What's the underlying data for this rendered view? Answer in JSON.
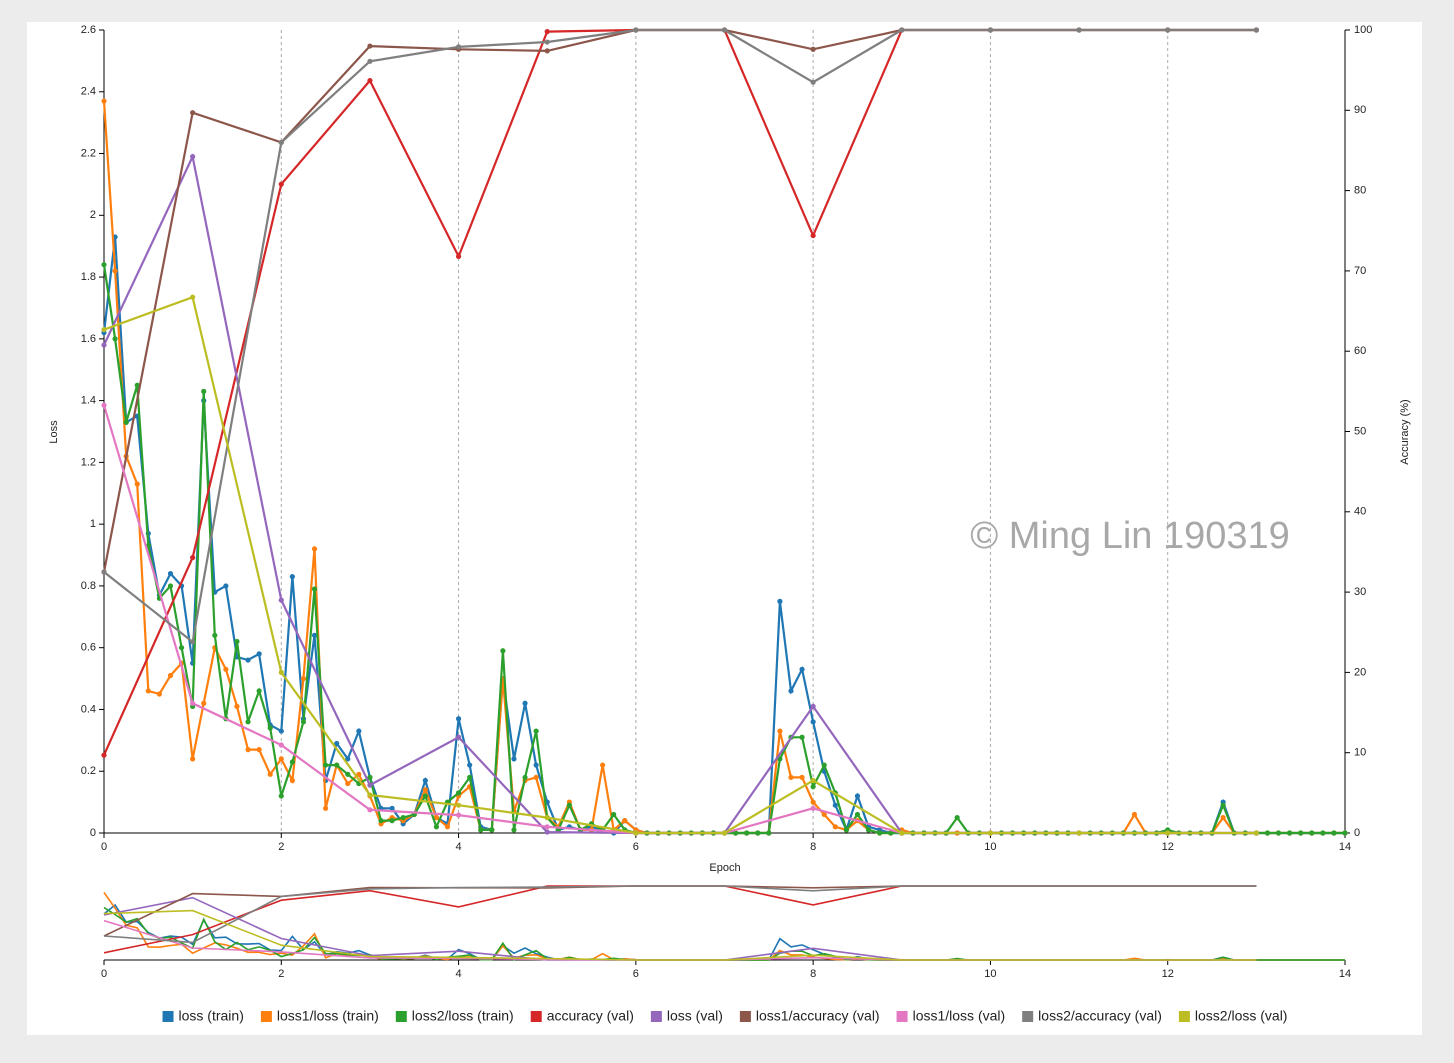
{
  "chart_data": {
    "type": "line",
    "watermark": "© Ming Lin 190319",
    "xlabel": "Epoch",
    "ylabel": "Loss",
    "y2label": "Accuracy (%)",
    "xlim": [
      0,
      14
    ],
    "xticks": [
      0,
      2,
      4,
      6,
      8,
      10,
      12,
      14
    ],
    "ylim": [
      0,
      2.6
    ],
    "yticks": [
      0,
      0.2,
      0.4,
      0.6,
      0.8,
      1,
      1.2,
      1.4,
      1.6,
      1.8,
      2,
      2.2,
      2.4,
      2.6
    ],
    "y2lim": [
      0,
      100
    ],
    "y2ticks": [
      0,
      10,
      20,
      30,
      40,
      50,
      60,
      70,
      80,
      90,
      100
    ],
    "xgrid": true,
    "x": [
      0,
      0.125,
      0.25,
      0.375,
      0.5,
      0.625,
      0.75,
      0.875,
      1,
      1.125,
      1.25,
      1.375,
      1.5,
      1.625,
      1.75,
      1.875,
      2,
      2.125,
      2.25,
      2.375,
      2.5,
      2.625,
      2.75,
      2.875,
      3,
      3.125,
      3.25,
      3.375,
      3.5,
      3.625,
      3.75,
      3.875,
      4,
      4.125,
      4.25,
      4.375,
      4.5,
      4.625,
      4.75,
      4.875,
      5,
      5.125,
      5.25,
      5.375,
      5.5,
      5.625,
      5.75,
      5.875,
      6,
      6.125,
      6.25,
      6.375,
      6.5,
      6.625,
      6.75,
      6.875,
      7,
      7.125,
      7.25,
      7.375,
      7.5,
      7.625,
      7.75,
      7.875,
      8,
      8.125,
      8.25,
      8.375,
      8.5,
      8.625,
      8.75,
      8.875,
      9,
      9.125,
      9.25,
      9.375,
      9.5,
      9.625,
      9.75,
      9.875,
      10,
      10.125,
      10.25,
      10.375,
      10.5,
      10.625,
      10.75,
      10.875,
      11,
      11.125,
      11.25,
      11.375,
      11.5,
      11.625,
      11.75,
      11.875,
      12,
      12.125,
      12.25,
      12.375,
      12.5,
      12.625,
      12.75,
      12.875,
      13,
      13.125,
      13.25,
      13.375,
      13.5,
      13.625,
      13.75,
      13.875,
      14
    ],
    "series": [
      {
        "name": "loss (train)",
        "color": "#1f77b4",
        "values": [
          1.62,
          1.93,
          1.33,
          1.35,
          0.97,
          0.77,
          0.84,
          0.8,
          0.55,
          1.4,
          0.78,
          0.8,
          0.57,
          0.56,
          0.58,
          0.35,
          0.33,
          0.83,
          0.37,
          0.64,
          0.17,
          0.29,
          0.24,
          0.33,
          0.18,
          0.08,
          0.08,
          0.03,
          0.06,
          0.17,
          0.05,
          0.03,
          0.37,
          0.22,
          0.02,
          0.01,
          0.5,
          0.24,
          0.42,
          0.22,
          0.1,
          0.01,
          0.02,
          0.01,
          0.02,
          0.01,
          0,
          0.04,
          0.01,
          0,
          0,
          0,
          0,
          0,
          0,
          0,
          0,
          0,
          0,
          0,
          0,
          0.75,
          0.46,
          0.53,
          0.36,
          0.2,
          0.09,
          0.01,
          0.12,
          0.02,
          0.01,
          0,
          0,
          0,
          0,
          0,
          0,
          0,
          0,
          0,
          0,
          0,
          0,
          0,
          0,
          0,
          0,
          0,
          0,
          0,
          0,
          0,
          0,
          0,
          0,
          0,
          0,
          0,
          0,
          0,
          0,
          0.1,
          0,
          0,
          0,
          0,
          0,
          0,
          0,
          0,
          0,
          0,
          0
        ]
      },
      {
        "name": "loss1/loss (train)",
        "color": "#ff7f0e",
        "values": [
          2.37,
          1.82,
          1.22,
          1.13,
          0.46,
          0.45,
          0.51,
          0.55,
          0.24,
          0.42,
          0.6,
          0.53,
          0.41,
          0.27,
          0.27,
          0.19,
          0.24,
          0.17,
          0.5,
          0.92,
          0.08,
          0.22,
          0.16,
          0.19,
          0.12,
          0.03,
          0.05,
          0.04,
          0.06,
          0.14,
          0.05,
          0.02,
          0.12,
          0.15,
          0.01,
          0.01,
          0.5,
          0.07,
          0.17,
          0.18,
          0.05,
          0.02,
          0.1,
          0.01,
          0.01,
          0.22,
          0.01,
          0.04,
          0.01,
          0,
          0,
          0,
          0,
          0,
          0,
          0,
          0,
          0,
          0,
          0,
          0,
          0.33,
          0.18,
          0.18,
          0.1,
          0.06,
          0.02,
          0.01,
          0.04,
          0.01,
          0,
          0,
          0.01,
          0,
          0,
          0,
          0,
          0,
          0,
          0,
          0,
          0,
          0,
          0,
          0,
          0,
          0,
          0,
          0,
          0,
          0,
          0,
          0,
          0.06,
          0,
          0,
          0,
          0,
          0,
          0,
          0,
          0.05,
          0,
          0,
          0,
          0,
          0,
          0,
          0,
          0,
          0,
          0,
          0
        ]
      },
      {
        "name": "loss2/loss (train)",
        "color": "#2ca02c",
        "values": [
          1.84,
          1.6,
          1.33,
          1.45,
          0.93,
          0.76,
          0.8,
          0.6,
          0.41,
          1.43,
          0.64,
          0.37,
          0.62,
          0.36,
          0.46,
          0.34,
          0.12,
          0.23,
          0.36,
          0.79,
          0.22,
          0.22,
          0.19,
          0.16,
          0.18,
          0.04,
          0.04,
          0.05,
          0.06,
          0.12,
          0.02,
          0.1,
          0.13,
          0.18,
          0.01,
          0.01,
          0.59,
          0.01,
          0.18,
          0.33,
          0.05,
          0.01,
          0.09,
          0.01,
          0.03,
          0.01,
          0.06,
          0.01,
          0,
          0,
          0,
          0,
          0,
          0,
          0,
          0,
          0,
          0,
          0,
          0,
          0,
          0.24,
          0.31,
          0.31,
          0.15,
          0.22,
          0.13,
          0.01,
          0.06,
          0.01,
          0,
          0,
          0,
          0,
          0,
          0,
          0,
          0.05,
          0,
          0,
          0,
          0,
          0,
          0,
          0,
          0,
          0,
          0,
          0,
          0,
          0,
          0,
          0,
          0,
          0,
          0,
          0.01,
          0,
          0,
          0,
          0,
          0.09,
          0,
          0,
          0,
          0,
          0,
          0,
          0,
          0,
          0,
          0,
          0
        ]
      },
      {
        "name": "accuracy (val)",
        "color": "#d62728",
        "axis": "y2",
        "x": [
          0,
          1,
          2,
          3,
          4,
          5,
          6,
          7,
          8,
          9,
          10,
          11,
          12,
          13
        ],
        "values": [
          9.7,
          34.3,
          80.8,
          93.7,
          71.8,
          99.8,
          100,
          100,
          74.4,
          100,
          100,
          100,
          100,
          100
        ]
      },
      {
        "name": "loss (val)",
        "color": "#9467bd",
        "x": [
          0,
          1,
          2,
          3,
          4,
          5,
          6,
          7,
          8,
          9,
          10,
          11,
          12,
          13
        ],
        "values": [
          1.58,
          2.19,
          0.754,
          0.155,
          0.31,
          0.003,
          0,
          0,
          0.41,
          0,
          0,
          0,
          0,
          0
        ]
      },
      {
        "name": "loss1/accuracy (val)",
        "color": "#8c564b",
        "axis": "y2",
        "x": [
          0,
          1,
          2,
          3,
          4,
          5,
          6,
          7,
          8,
          9,
          10,
          11,
          12,
          13
        ],
        "values": [
          32.5,
          89.7,
          86,
          98,
          97.6,
          97.4,
          100,
          100,
          97.6,
          100,
          100,
          100,
          100,
          100
        ]
      },
      {
        "name": "loss1/loss (val)",
        "color": "#e377c2",
        "x": [
          0,
          1,
          2,
          3,
          4,
          5,
          6,
          7,
          8,
          9,
          10,
          11,
          12,
          13
        ],
        "values": [
          1.385,
          0.42,
          0.285,
          0.075,
          0.058,
          0.02,
          0,
          0,
          0.08,
          0,
          0,
          0,
          0,
          0
        ]
      },
      {
        "name": "loss2/accuracy (val)",
        "color": "#7f7f7f",
        "axis": "y2",
        "x": [
          0,
          1,
          2,
          3,
          4,
          5,
          6,
          7,
          8,
          9,
          10,
          11,
          12,
          13
        ],
        "values": [
          32.5,
          23.8,
          86,
          96.1,
          97.9,
          98.5,
          100,
          100,
          93.5,
          100,
          100,
          100,
          100,
          100
        ]
      },
      {
        "name": "loss2/loss (val)",
        "color": "#bcbd22",
        "x": [
          0,
          1,
          2,
          3,
          4,
          5,
          6,
          7,
          8,
          9,
          10,
          11,
          12,
          13
        ],
        "values": [
          1.63,
          1.735,
          0.52,
          0.123,
          0.09,
          0.05,
          0,
          0,
          0.17,
          0,
          0,
          0,
          0,
          0
        ]
      }
    ]
  }
}
